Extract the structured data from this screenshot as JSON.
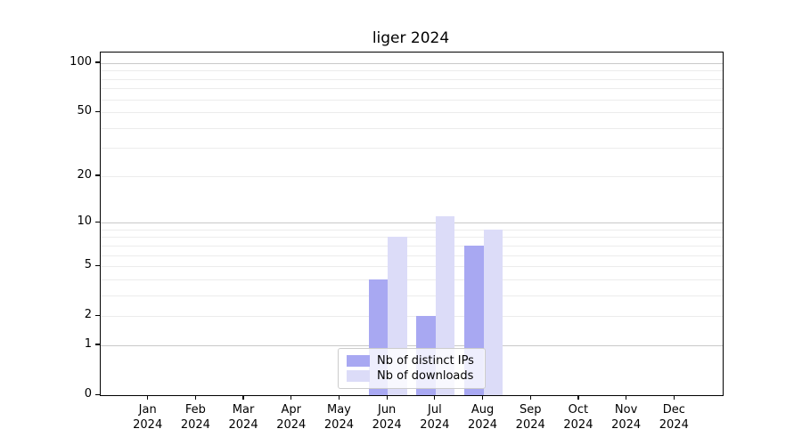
{
  "chart_data": {
    "type": "bar",
    "title": "liger 2024",
    "categories": [
      "Jan 2024",
      "Feb 2024",
      "Mar 2024",
      "Apr 2024",
      "May 2024",
      "Jun 2024",
      "Jul 2024",
      "Aug 2024",
      "Sep 2024",
      "Oct 2024",
      "Nov 2024",
      "Dec 2024"
    ],
    "series": [
      {
        "name": "Nb of distinct IPs",
        "color": "#a8a8f2",
        "values": [
          0,
          0,
          0,
          0,
          0,
          4,
          2,
          7,
          0,
          0,
          0,
          0
        ]
      },
      {
        "name": "Nb of downloads",
        "color": "#dcdcf8",
        "values": [
          0,
          0,
          0,
          0,
          0,
          8,
          11,
          9,
          0,
          0,
          0,
          0
        ]
      }
    ],
    "xlabel": "",
    "ylabel": "",
    "y_scale": "log10(1+v)",
    "ylim": [
      0,
      116
    ],
    "y_ticks": [
      0,
      1,
      2,
      5,
      10,
      20,
      50,
      100
    ],
    "y_major_grid": [
      1,
      10,
      100
    ],
    "y_minor_grid": [
      2,
      3,
      4,
      5,
      6,
      7,
      8,
      9,
      20,
      30,
      40,
      50,
      60,
      70,
      80,
      90
    ],
    "grid": true,
    "legend_position": "lower center",
    "colors": {
      "axis": "#000000",
      "major_grid": "#c9c9c9",
      "minor_grid": "#ececec",
      "legend_border": "#cccccc"
    }
  }
}
